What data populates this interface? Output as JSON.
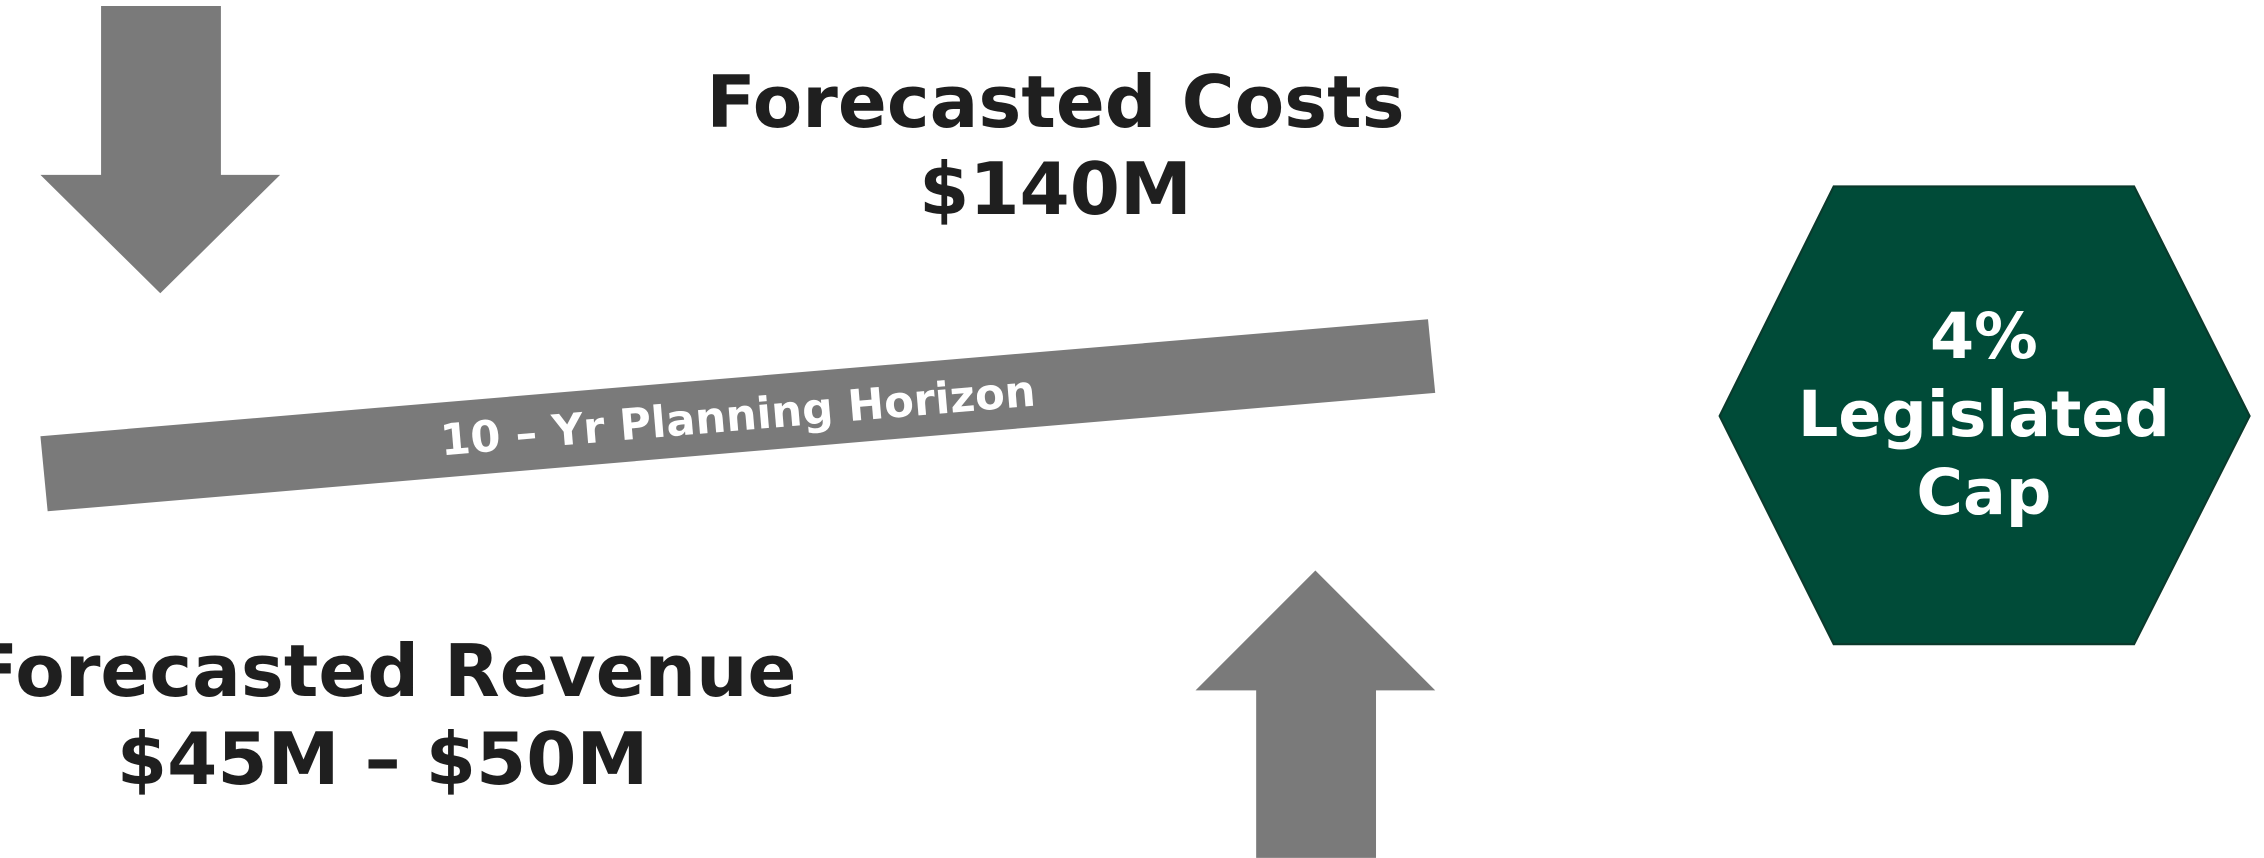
{
  "costs": {
    "title": "Forecasted Costs",
    "value": "$140M"
  },
  "revenue": {
    "title": "Forecasted Revenue",
    "value": "$45M – $50M"
  },
  "horizon": {
    "label": "10 – Yr Planning Horizon"
  },
  "cap": {
    "lines": [
      "4%",
      "Legislated",
      "Cap"
    ]
  }
}
